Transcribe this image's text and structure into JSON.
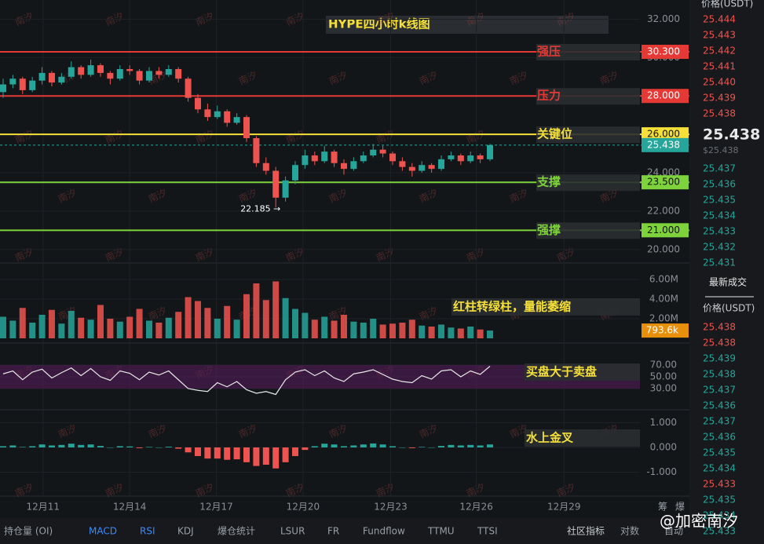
{
  "chart_data": {
    "type": "candlestick",
    "title": "HYPE四小时k线图",
    "xlim": [
      -0.32,
      65.4
    ],
    "xticks": [
      {
        "value": 4.1,
        "label": "12月11"
      },
      {
        "value": 13,
        "label": "12月14"
      },
      {
        "value": 21.9,
        "label": "12月17"
      },
      {
        "value": 30.8,
        "label": "12月20"
      },
      {
        "value": 39.8,
        "label": "12月23"
      },
      {
        "value": 48.6,
        "label": "12月26"
      },
      {
        "value": 57.6,
        "label": "12月29"
      }
    ],
    "ylim": [
      19.5,
      33
    ],
    "yticks": [
      {
        "value": 32,
        "label": "32.000"
      },
      {
        "value": 30,
        "label": "30.000"
      },
      {
        "value": 28,
        "label": "28.000"
      },
      {
        "value": 26,
        "label": "26.000"
      },
      {
        "value": 24,
        "label": "24.000"
      },
      {
        "value": 22,
        "label": "22.000"
      },
      {
        "value": 20,
        "label": "20.000"
      }
    ],
    "up_color": "#26a69a",
    "down_color": "#ef5350",
    "candles": [
      [
        28.2,
        28.9,
        27.9,
        28.6
      ],
      [
        28.6,
        29.1,
        28.4,
        28.9
      ],
      [
        28.9,
        29.0,
        28.1,
        28.3
      ],
      [
        28.3,
        29.0,
        28.2,
        28.8
      ],
      [
        28.8,
        29.5,
        28.6,
        29.2
      ],
      [
        29.2,
        29.3,
        28.5,
        28.7
      ],
      [
        28.7,
        29.2,
        28.6,
        29.0
      ],
      [
        29.0,
        29.8,
        28.9,
        29.5
      ],
      [
        29.5,
        29.6,
        28.9,
        29.1
      ],
      [
        29.1,
        29.9,
        29.0,
        29.6
      ],
      [
        29.6,
        29.7,
        29.0,
        29.2
      ],
      [
        29.2,
        29.3,
        28.6,
        28.9
      ],
      [
        28.9,
        29.6,
        28.8,
        29.4
      ],
      [
        29.4,
        29.6,
        29.1,
        29.3
      ],
      [
        29.3,
        29.4,
        28.6,
        28.8
      ],
      [
        28.8,
        29.5,
        28.7,
        29.3
      ],
      [
        29.3,
        29.5,
        28.9,
        29.1
      ],
      [
        29.1,
        29.6,
        29.0,
        29.4
      ],
      [
        29.4,
        29.5,
        28.7,
        28.9
      ],
      [
        28.9,
        29.0,
        27.7,
        27.9
      ],
      [
        27.9,
        28.1,
        27.1,
        27.3
      ],
      [
        27.3,
        27.6,
        26.7,
        26.9
      ],
      [
        26.9,
        27.5,
        26.8,
        27.2
      ],
      [
        27.2,
        27.3,
        26.4,
        26.6
      ],
      [
        26.6,
        27.1,
        26.5,
        26.9
      ],
      [
        26.9,
        27.0,
        25.6,
        25.8
      ],
      [
        25.8,
        25.9,
        24.3,
        24.5
      ],
      [
        24.5,
        24.8,
        23.9,
        24.1
      ],
      [
        24.1,
        24.3,
        22.185,
        22.7
      ],
      [
        22.7,
        23.8,
        22.5,
        23.6
      ],
      [
        23.6,
        24.6,
        23.4,
        24.4
      ],
      [
        24.4,
        25.2,
        24.2,
        24.9
      ],
      [
        24.9,
        25.1,
        24.4,
        24.6
      ],
      [
        24.6,
        25.4,
        24.5,
        25.1
      ],
      [
        25.1,
        25.2,
        24.3,
        24.5
      ],
      [
        24.5,
        24.7,
        23.9,
        24.2
      ],
      [
        24.2,
        24.8,
        24.1,
        24.6
      ],
      [
        24.6,
        25.1,
        24.5,
        24.9
      ],
      [
        24.9,
        25.5,
        24.8,
        25.2
      ],
      [
        25.2,
        25.4,
        24.8,
        25.0
      ],
      [
        25.0,
        25.1,
        24.4,
        24.6
      ],
      [
        24.6,
        24.8,
        24.1,
        24.3
      ],
      [
        24.3,
        24.5,
        23.8,
        24.1
      ],
      [
        24.1,
        24.6,
        24.0,
        24.4
      ],
      [
        24.4,
        24.5,
        24.0,
        24.2
      ],
      [
        24.2,
        24.9,
        24.1,
        24.7
      ],
      [
        24.7,
        25.1,
        24.6,
        24.9
      ],
      [
        24.9,
        25.0,
        24.4,
        24.6
      ],
      [
        24.6,
        25.1,
        24.5,
        24.9
      ],
      [
        24.9,
        25.0,
        24.5,
        24.7
      ],
      [
        24.7,
        25.5,
        24.6,
        25.438
      ]
    ],
    "low_label": "22.185 →",
    "low_index": 28,
    "levels": [
      {
        "name": "强压",
        "value": 30.3,
        "label": "30.300",
        "color": "#e53935"
      },
      {
        "name": "压力",
        "value": 28,
        "label": "28.000",
        "color": "#e53935"
      },
      {
        "name": "关键位",
        "value": 26,
        "label": "26.000",
        "color": "#f5e03a"
      },
      {
        "name": "支撑",
        "value": 23.5,
        "label": "23.500",
        "color": "#7ed23c"
      },
      {
        "name": "强撑",
        "value": 21,
        "label": "21.000",
        "color": "#7ed23c"
      }
    ],
    "last_price": 25.438,
    "last_price_color": "#26a69a",
    "volume": {
      "ylim": [
        0,
        7200000
      ],
      "yticks": [
        {
          "value": 6000000,
          "label": "6.00M"
        },
        {
          "value": 4000000,
          "label": "4.00M"
        },
        {
          "value": 2000000,
          "label": "2.00M"
        }
      ],
      "values": [
        2200000,
        1800000,
        3100000,
        1600000,
        2400000,
        2900000,
        1500000,
        2800000,
        2100000,
        1900000,
        3400000,
        2000000,
        1700000,
        2200000,
        3000000,
        1800000,
        1600000,
        2100000,
        2700000,
        4200000,
        3800000,
        3100000,
        2000000,
        3300000,
        1900000,
        4500000,
        5600000,
        3900000,
        5800000,
        4100000,
        3000000,
        2600000,
        1900000,
        2200000,
        1800000,
        2400000,
        1700000,
        1600000,
        2000000,
        1400000,
        1500000,
        1600000,
        1900000,
        1300000,
        1200000,
        1400000,
        1100000,
        1000000,
        1200000,
        900000,
        793600
      ],
      "last": {
        "value": 793600,
        "label": "793.6k"
      },
      "annotation": "红柱转绿柱，量能萎缩"
    },
    "rsi": {
      "ylim": [
        0,
        100
      ],
      "yticks": [
        {
          "value": 70,
          "label": "70.00"
        },
        {
          "value": 50,
          "label": "50.00"
        },
        {
          "value": 30,
          "label": "30.00"
        }
      ],
      "values": [
        55,
        60,
        45,
        58,
        63,
        48,
        57,
        65,
        52,
        64,
        50,
        44,
        60,
        56,
        45,
        58,
        53,
        60,
        45,
        30,
        27,
        25,
        40,
        33,
        42,
        28,
        22,
        25,
        20,
        45,
        58,
        62,
        52,
        60,
        48,
        42,
        55,
        58,
        62,
        54,
        46,
        42,
        40,
        52,
        46,
        60,
        62,
        50,
        60,
        54,
        68
      ],
      "annotation": "买盘大于卖盘"
    },
    "macd": {
      "ylim": [
        -1.7,
        1.5
      ],
      "yticks": [
        {
          "value": 1,
          "label": "1.000"
        },
        {
          "value": 0,
          "label": "0.000"
        },
        {
          "value": -1,
          "label": "-1.000"
        }
      ],
      "values": [
        0.05,
        0.08,
        0.02,
        0.05,
        0.12,
        0.08,
        0.1,
        0.15,
        0.1,
        0.12,
        0.06,
        0.0,
        0.05,
        0.04,
        -0.03,
        0.02,
        0.0,
        0.03,
        -0.05,
        -0.2,
        -0.35,
        -0.45,
        -0.45,
        -0.5,
        -0.48,
        -0.6,
        -0.75,
        -0.7,
        -0.85,
        -0.6,
        -0.35,
        -0.1,
        0.05,
        0.15,
        0.12,
        0.05,
        0.08,
        0.12,
        0.16,
        0.12,
        0.05,
        0.0,
        -0.03,
        0.02,
        0.0,
        0.06,
        0.1,
        0.08,
        0.1,
        0.08,
        0.12
      ],
      "annotation": "水上金叉"
    }
  },
  "orderbook": {
    "header": "价格(USDT)",
    "asks": [
      "25.444",
      "25.443",
      "25.442",
      "25.441",
      "25.440",
      "25.439",
      "25.438"
    ],
    "last": "25.438",
    "last_sub": "$25.438",
    "bids": [
      "25.437",
      "25.436",
      "25.435",
      "25.434",
      "25.433",
      "25.432",
      "25.431"
    ],
    "trades_title": "最新成交",
    "trades_header": "价格(USDT)",
    "trades": [
      {
        "price": "25.438",
        "color": "#ef5350"
      },
      {
        "price": "25.438",
        "color": "#ef5350"
      },
      {
        "price": "25.439",
        "color": "#26a69a"
      },
      {
        "price": "25.438",
        "color": "#26a69a"
      },
      {
        "price": "25.437",
        "color": "#26a69a"
      },
      {
        "price": "25.436",
        "color": "#26a69a"
      },
      {
        "price": "25.437",
        "color": "#26a69a"
      },
      {
        "price": "25.436",
        "color": "#26a69a"
      },
      {
        "price": "25.435",
        "color": "#26a69a"
      },
      {
        "price": "25.434",
        "color": "#26a69a"
      },
      {
        "price": "25.433",
        "color": "#ef5350"
      },
      {
        "price": "25.435",
        "color": "#26a69a"
      },
      {
        "price": "25.434",
        "color": "#26a69a"
      },
      {
        "price": "25.433",
        "color": "#26a69a"
      }
    ]
  },
  "toolbar": {
    "items": [
      {
        "text": "持仓量 (OI)",
        "color": "#9aa0a6"
      },
      {
        "text": "MACD",
        "color": "#3d8bff"
      },
      {
        "text": "RSI",
        "color": "#3d8bff"
      },
      {
        "text": "KDJ",
        "color": "#9aa0a6"
      },
      {
        "text": "爆仓统计",
        "color": "#9aa0a6"
      },
      {
        "text": "LSUR",
        "color": "#9aa0a6"
      },
      {
        "text": "FR",
        "color": "#9aa0a6"
      },
      {
        "text": "Fundflow",
        "color": "#9aa0a6"
      },
      {
        "text": "TTMU",
        "color": "#9aa0a6"
      },
      {
        "text": "TTSI",
        "color": "#9aa0a6"
      }
    ],
    "community": "社区指标",
    "log": "对数",
    "auto": "自动",
    "chip": "筹",
    "liq": "爆"
  },
  "watermark": {
    "text": "南汐",
    "handle": "@加密南汐"
  }
}
